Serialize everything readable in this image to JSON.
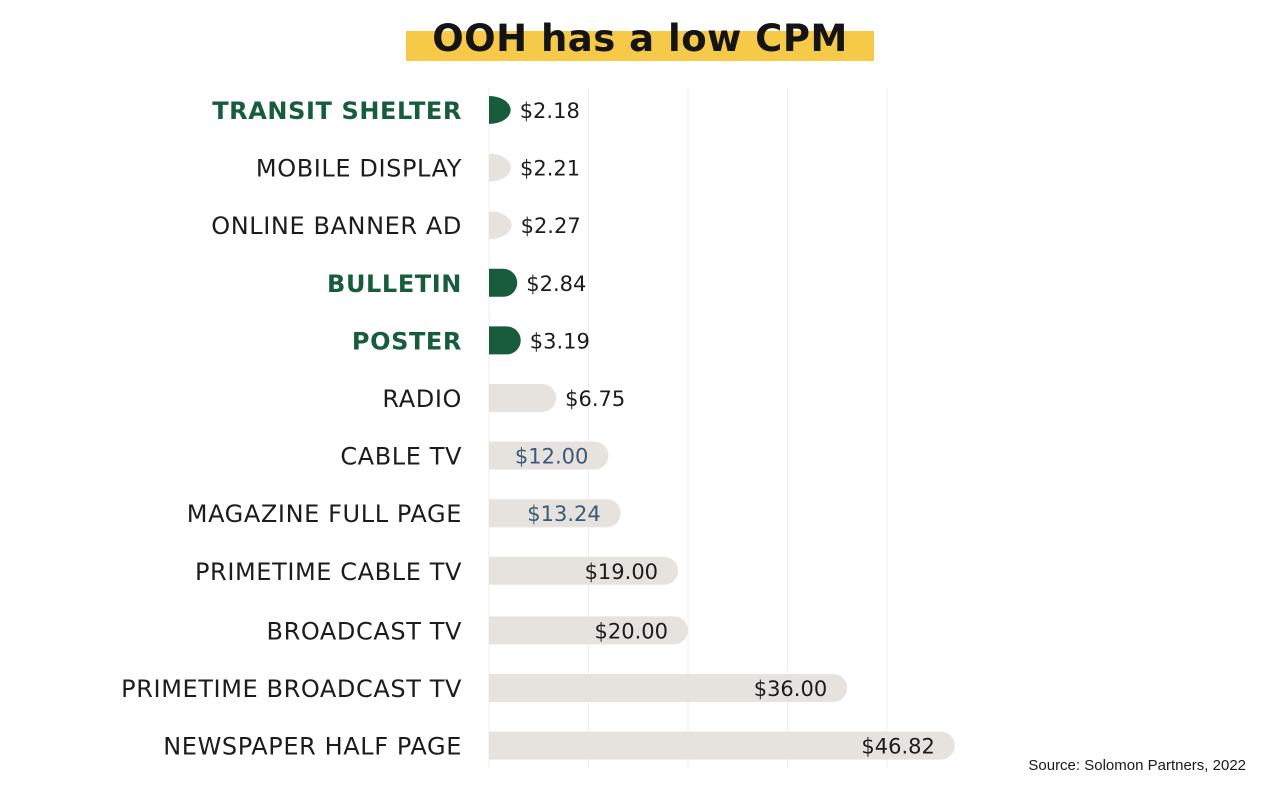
{
  "title": "OOH has a low CPM",
  "source": "Source: Solomon Partners, 2022",
  "colors": {
    "ooh_bar": "#165c3d",
    "ooh_label": "#165c3d",
    "other_bar": "#e6e3de",
    "other_label": "#1c1c1c",
    "highlight_value": "#3c5a78",
    "value": "#1c1c1c",
    "title_highlight": "#f7c948",
    "grid": "#ececec"
  },
  "chart_data": {
    "type": "bar",
    "orientation": "horizontal",
    "title": "OOH has a low CPM",
    "xlabel": "",
    "ylabel": "",
    "xlim": [
      0,
      50
    ],
    "grid": true,
    "categories": [
      "TRANSIT SHELTER",
      "MOBILE DISPLAY",
      "ONLINE BANNER AD",
      "BULLETIN",
      "POSTER",
      "RADIO",
      "CABLE TV",
      "MAGAZINE FULL PAGE",
      "PRIMETIME CABLE TV",
      "BROADCAST TV",
      "PRIMETIME BROADCAST TV",
      "NEWSPAPER HALF PAGE"
    ],
    "values": [
      2.18,
      2.21,
      2.27,
      2.84,
      3.19,
      6.75,
      12.0,
      13.24,
      19.0,
      20.0,
      36.0,
      46.82
    ],
    "value_labels": [
      "$2.18",
      "$2.21",
      "$2.27",
      "$2.84",
      "$3.19",
      "$6.75",
      "$12.00",
      "$13.24",
      "$19.00",
      "$20.00",
      "$36.00",
      "$46.82"
    ],
    "highlight": [
      true,
      false,
      false,
      true,
      true,
      false,
      false,
      false,
      false,
      false,
      false,
      false
    ],
    "value_label_placement": [
      "outside",
      "outside",
      "outside",
      "outside",
      "outside",
      "outside",
      "inside",
      "inside",
      "inside",
      "inside",
      "inside",
      "inside"
    ],
    "value_label_color": [
      "value",
      "value",
      "value",
      "value",
      "value",
      "value",
      "highlight_value",
      "highlight_value",
      "value",
      "value",
      "value",
      "value"
    ]
  }
}
